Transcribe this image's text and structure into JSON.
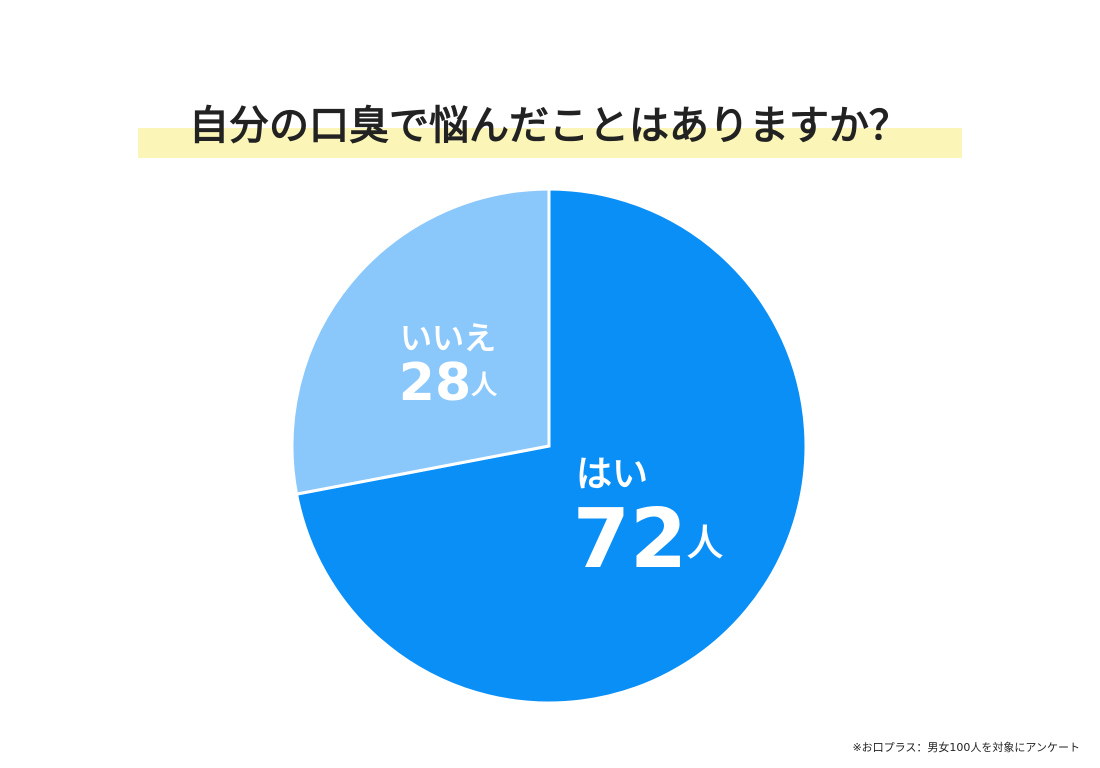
{
  "chart_data": {
    "type": "pie",
    "title": "自分の口臭で悩んだことはありますか？",
    "categories": [
      "はい",
      "いいえ"
    ],
    "values": [
      72,
      28
    ],
    "unit": "人",
    "colors": [
      "#0a8ff7",
      "#8ac8fc"
    ],
    "footnote": "※お口プラス：男女100人を対象にアンケート"
  }
}
